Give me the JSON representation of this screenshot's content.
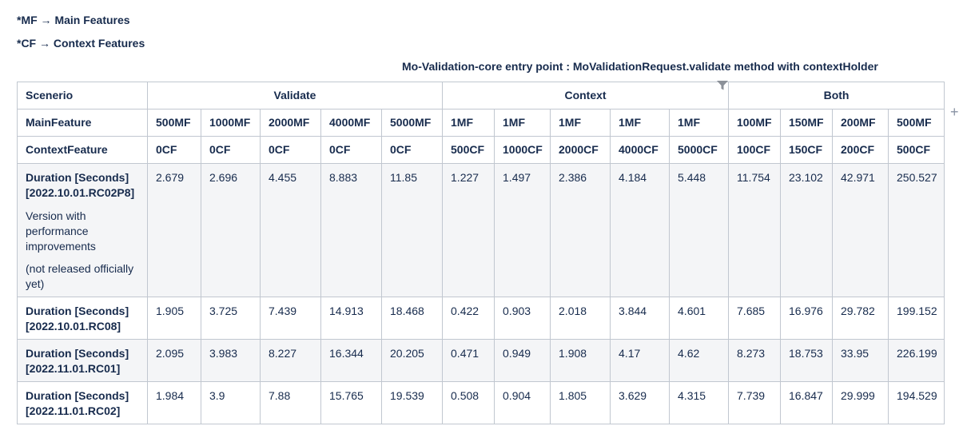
{
  "notes": {
    "mf": "*MF → Main Features",
    "cf": "*CF → Context Features"
  },
  "caption": "Mo-Validation-core entry point : MoValidationRequest.validate method with contextHolder",
  "table": {
    "groups": {
      "scenario": "Scenerio",
      "validate": "Validate",
      "context": "Context",
      "both": "Both"
    },
    "main_feature": {
      "label": "MainFeature",
      "values": [
        "500MF",
        "1000MF",
        "2000MF",
        "4000MF",
        "5000MF",
        "1MF",
        "1MF",
        "1MF",
        "1MF",
        "1MF",
        "100MF",
        "150MF",
        "200MF",
        "500MF"
      ]
    },
    "context_feature": {
      "label": "ContextFeature",
      "values": [
        "0CF",
        "0CF",
        "0CF",
        "0CF",
        "0CF",
        "500CF",
        "1000CF",
        "2000CF",
        "4000CF",
        "5000CF",
        "100CF",
        "150CF",
        "200CF",
        "500CF"
      ]
    },
    "rows": [
      {
        "label": "Duration [Seconds] [2022.10.01.RC02P8]",
        "note1": "Version with performance improvements",
        "note2": "(not released officially yet)",
        "values": [
          "2.679",
          "2.696",
          "4.455",
          "8.883",
          "11.85",
          "1.227",
          "1.497",
          "2.386",
          "4.184",
          "5.448",
          "11.754",
          "23.102",
          "42.971",
          "250.527"
        ]
      },
      {
        "label": "Duration [Seconds] [2022.10.01.RC08]",
        "values": [
          "1.905",
          "3.725",
          "7.439",
          "14.913",
          "18.468",
          "0.422",
          "0.903",
          "2.018",
          "3.844",
          "4.601",
          "7.685",
          "16.976",
          "29.782",
          "199.152"
        ]
      },
      {
        "label": "Duration [Seconds] [2022.11.01.RC01]",
        "values": [
          "2.095",
          "3.983",
          "8.227",
          "16.344",
          "20.205",
          "0.471",
          "0.949",
          "1.908",
          "4.17",
          "4.62",
          "8.273",
          "18.753",
          "33.95",
          "226.199"
        ]
      },
      {
        "label": "Duration [Seconds] [2022.11.01.RC02]",
        "values": [
          "1.984",
          "3.9",
          "7.88",
          "15.765",
          "19.539",
          "0.508",
          "0.904",
          "1.805",
          "3.629",
          "4.315",
          "7.739",
          "16.847",
          "29.999",
          "194.529"
        ]
      }
    ]
  },
  "icons": {
    "filter": "filter-icon",
    "add_column": "plus-icon",
    "plus_glyph": "+"
  }
}
